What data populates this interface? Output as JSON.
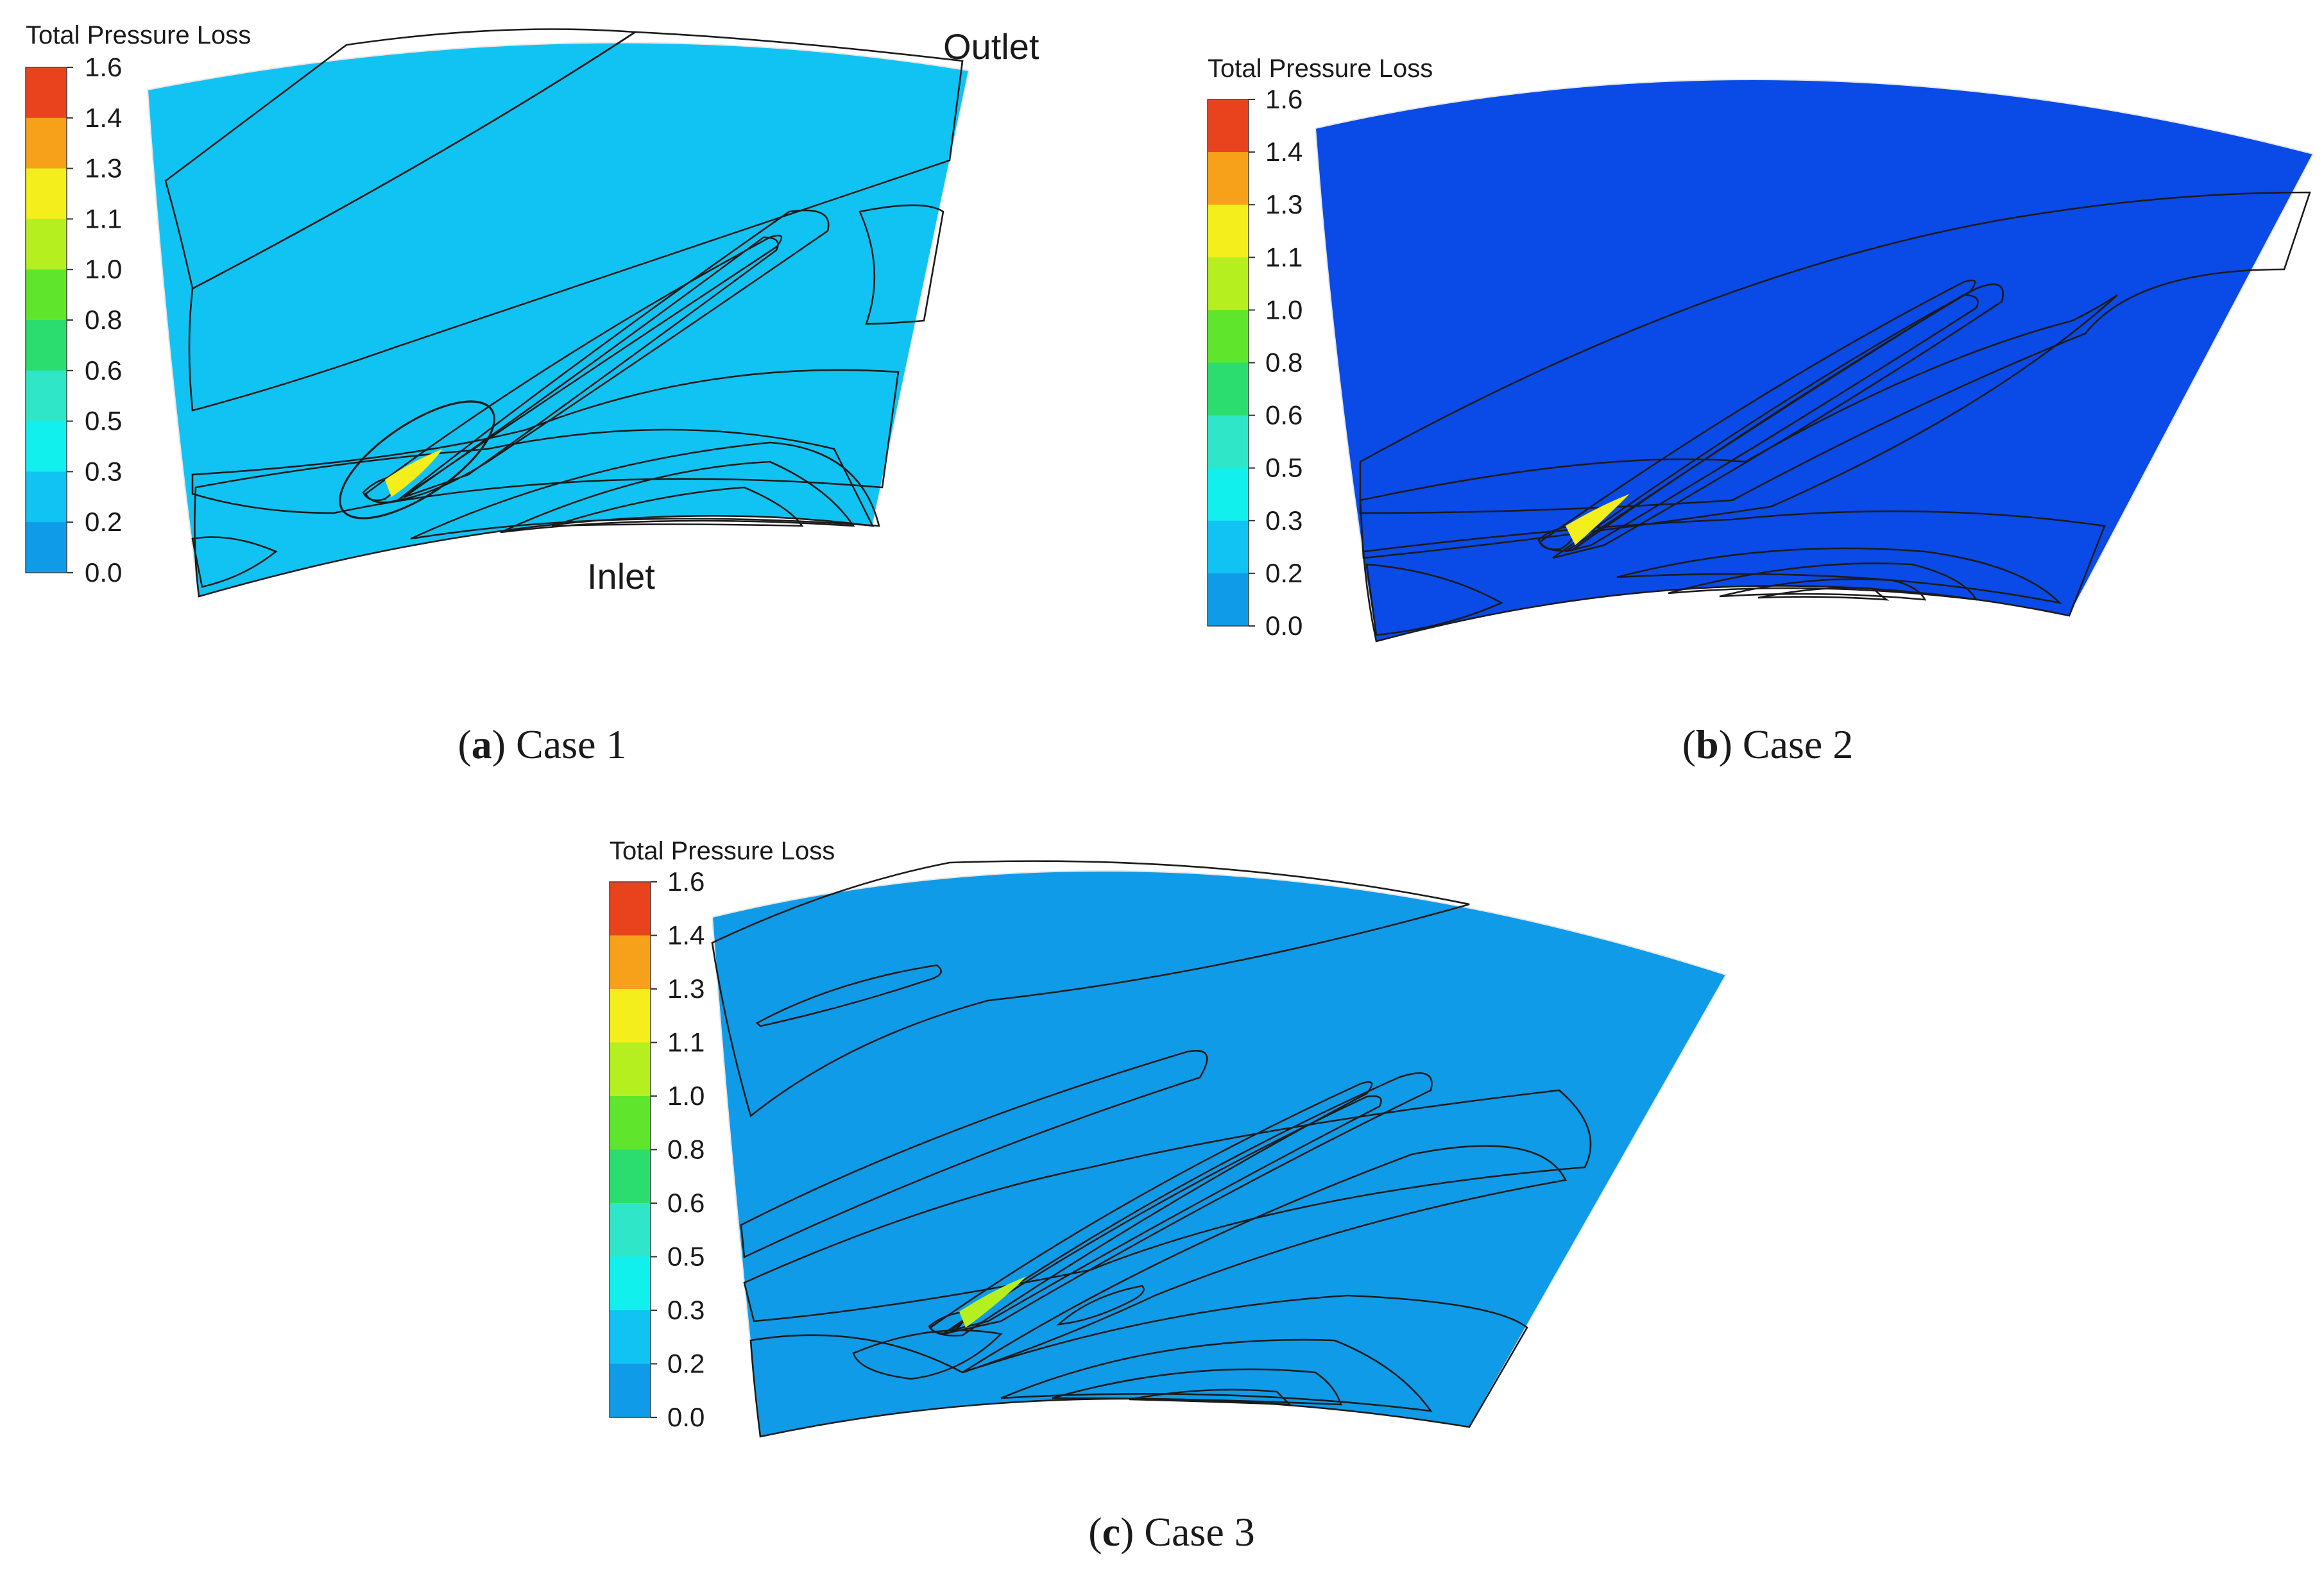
{
  "chart_data": [
    {
      "type": "heatmap",
      "panel": "a",
      "title": "Case 1",
      "colorbar_title": "Total Pressure Loss",
      "colorbar_ticks": [
        "1.6",
        "1.4",
        "1.3",
        "1.1",
        "1.0",
        "0.8",
        "0.6",
        "0.5",
        "0.3",
        "0.2",
        "0.0"
      ],
      "value_range": [
        0.0,
        1.6
      ],
      "annotations": [
        "Outlet",
        "Inlet"
      ]
    },
    {
      "type": "heatmap",
      "panel": "b",
      "title": "Case 2",
      "colorbar_title": "Total Pressure Loss",
      "colorbar_ticks": [
        "1.6",
        "1.4",
        "1.3",
        "1.1",
        "1.0",
        "0.8",
        "0.6",
        "0.5",
        "0.3",
        "0.2",
        "0.0"
      ],
      "value_range": [
        0.0,
        1.6
      ],
      "annotations": []
    },
    {
      "type": "heatmap",
      "panel": "c",
      "title": "Case 3",
      "colorbar_title": "Total Pressure Loss",
      "colorbar_ticks": [
        "1.6",
        "1.4",
        "1.3",
        "1.1",
        "1.0",
        "0.8",
        "0.6",
        "0.5",
        "0.3",
        "0.2",
        "0.0"
      ],
      "value_range": [
        0.0,
        1.6
      ],
      "annotations": []
    }
  ],
  "colors": {
    "level_colors": [
      "#e8431c",
      "#f7a11a",
      "#f4ef1c",
      "#b5ef1f",
      "#5fe62c",
      "#2bdd6e",
      "#2fe7c8",
      "#12f0ee",
      "#11c3f2",
      "#0f9be8",
      "#0a4ae6"
    ],
    "blade": "#ffffff",
    "line": "#1b1b1b"
  },
  "captions": {
    "a": {
      "letter": "a",
      "text": "Case 1"
    },
    "b": {
      "letter": "b",
      "text": "Case 2"
    },
    "c": {
      "letter": "c",
      "text": "Case 3"
    }
  }
}
